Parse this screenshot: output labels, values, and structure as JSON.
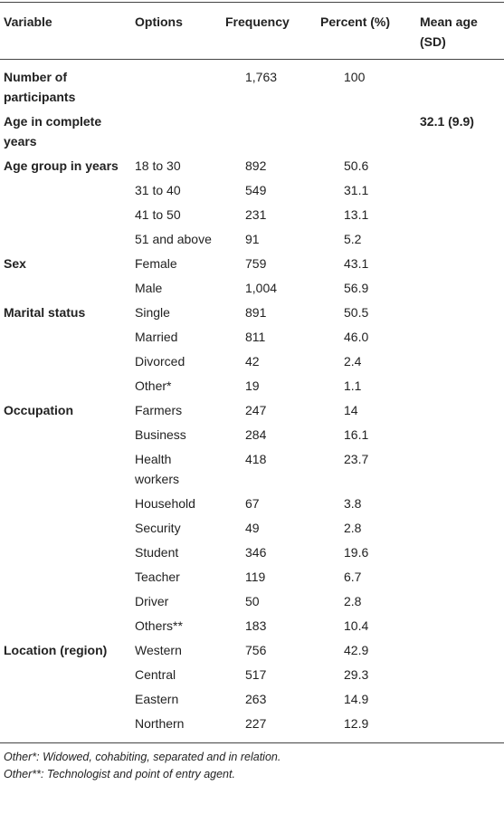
{
  "table": {
    "header": [
      "Variable",
      "Options",
      "Frequency",
      "Percent (%)",
      "Mean age (SD)"
    ],
    "rows": [
      [
        "Number of participants",
        null,
        "1,763",
        "100",
        null
      ],
      [
        "Age in complete years",
        null,
        null,
        null,
        "32.1 (9.9)"
      ],
      [
        "Age group in years",
        "18 to 30",
        "892",
        "50.6",
        null
      ],
      [
        null,
        "31 to 40",
        "549",
        "31.1",
        null
      ],
      [
        null,
        "41 to 50",
        "231",
        "13.1",
        null
      ],
      [
        null,
        "51 and above",
        "91",
        "5.2",
        null
      ],
      [
        "Sex",
        "Female",
        "759",
        "43.1",
        null
      ],
      [
        null,
        "Male",
        "1,004",
        "56.9",
        null
      ],
      [
        "Marital status",
        "Single",
        "891",
        "50.5",
        null
      ],
      [
        null,
        "Married",
        "811",
        "46.0",
        null
      ],
      [
        null,
        "Divorced",
        "42",
        "2.4",
        null
      ],
      [
        null,
        "Other*",
        "19",
        "1.1",
        null
      ],
      [
        "Occupation",
        "Farmers",
        "247",
        "14",
        null
      ],
      [
        null,
        "Business",
        "284",
        "16.1",
        null
      ],
      [
        null,
        "Health workers",
        "418",
        "23.7",
        null
      ],
      [
        null,
        "Household",
        "67",
        "3.8",
        null
      ],
      [
        null,
        "Security",
        "49",
        "2.8",
        null
      ],
      [
        null,
        "Student",
        "346",
        "19.6",
        null
      ],
      [
        null,
        "Teacher",
        "119",
        "6.7",
        null
      ],
      [
        null,
        "Driver",
        "50",
        "2.8",
        null
      ],
      [
        null,
        "Others**",
        "183",
        "10.4",
        null
      ],
      [
        "Location (region)",
        "Western",
        "756",
        "42.9",
        null
      ],
      [
        null,
        "Central",
        "517",
        "29.3",
        null
      ],
      [
        null,
        "Eastern",
        "263",
        "14.9",
        null
      ],
      [
        null,
        "Northern",
        "227",
        "12.9",
        null
      ]
    ],
    "footnotes": [
      "Other*: Widowed, cohabiting, separated and in relation.",
      "Other**: Technologist and point of entry agent."
    ]
  }
}
